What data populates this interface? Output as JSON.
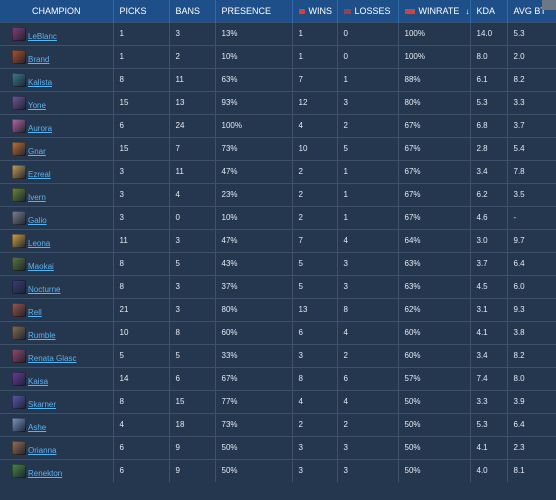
{
  "table": {
    "headers": {
      "champion": "CHAMPION",
      "picks": "PICKS",
      "bans": "BANS",
      "presence": "PRESENCE",
      "wins": "WINS",
      "losses": "LOSSES",
      "winrate": "WINRATE",
      "sort_glyph": "↓",
      "kda": "KDA",
      "avg_bt": "AVG BT"
    },
    "rows": [
      {
        "champion": "LeBlanc",
        "icon_color": "#8a3e7a",
        "picks": "1",
        "bans": "3",
        "presence": "13%",
        "wins": "1",
        "losses": "0",
        "winrate": "100%",
        "kda": "14.0",
        "avg_bt": "5.3"
      },
      {
        "champion": "Brand",
        "icon_color": "#b0542e",
        "picks": "1",
        "bans": "2",
        "presence": "10%",
        "wins": "1",
        "losses": "0",
        "winrate": "100%",
        "kda": "8.0",
        "avg_bt": "2.0"
      },
      {
        "champion": "Kalista",
        "icon_color": "#3e7d8c",
        "picks": "8",
        "bans": "11",
        "presence": "63%",
        "wins": "7",
        "losses": "1",
        "winrate": "88%",
        "kda": "6.1",
        "avg_bt": "8.2"
      },
      {
        "champion": "Yone",
        "icon_color": "#6e5a9a",
        "picks": "15",
        "bans": "13",
        "presence": "93%",
        "wins": "12",
        "losses": "3",
        "winrate": "80%",
        "kda": "5.3",
        "avg_bt": "3.3"
      },
      {
        "champion": "Aurora",
        "icon_color": "#b86aa6",
        "picks": "6",
        "bans": "24",
        "presence": "100%",
        "wins": "4",
        "losses": "2",
        "winrate": "67%",
        "kda": "6.8",
        "avg_bt": "3.7"
      },
      {
        "champion": "Gnar",
        "icon_color": "#c27436",
        "picks": "15",
        "bans": "7",
        "presence": "73%",
        "wins": "10",
        "losses": "5",
        "winrate": "67%",
        "kda": "2.8",
        "avg_bt": "5.4"
      },
      {
        "champion": "Ezreal",
        "icon_color": "#c9a25a",
        "picks": "3",
        "bans": "11",
        "presence": "47%",
        "wins": "2",
        "losses": "1",
        "winrate": "67%",
        "kda": "3.4",
        "avg_bt": "7.8"
      },
      {
        "champion": "Ivern",
        "icon_color": "#6a8a3a",
        "picks": "3",
        "bans": "4",
        "presence": "23%",
        "wins": "2",
        "losses": "1",
        "winrate": "67%",
        "kda": "6.2",
        "avg_bt": "3.5"
      },
      {
        "champion": "Galio",
        "icon_color": "#7c8590",
        "picks": "3",
        "bans": "0",
        "presence": "10%",
        "wins": "2",
        "losses": "1",
        "winrate": "67%",
        "kda": "4.6",
        "avg_bt": "-"
      },
      {
        "champion": "Leona",
        "icon_color": "#d4a646",
        "picks": "11",
        "bans": "3",
        "presence": "47%",
        "wins": "7",
        "losses": "4",
        "winrate": "64%",
        "kda": "3.0",
        "avg_bt": "9.7"
      },
      {
        "champion": "Maokai",
        "icon_color": "#5e7a3c",
        "picks": "8",
        "bans": "5",
        "presence": "43%",
        "wins": "5",
        "losses": "3",
        "winrate": "63%",
        "kda": "3.7",
        "avg_bt": "6.4"
      },
      {
        "champion": "Nocturne",
        "icon_color": "#3a3e78",
        "picks": "8",
        "bans": "3",
        "presence": "37%",
        "wins": "5",
        "losses": "3",
        "winrate": "63%",
        "kda": "4.5",
        "avg_bt": "6.0"
      },
      {
        "champion": "Rell",
        "icon_color": "#a0584a",
        "picks": "21",
        "bans": "3",
        "presence": "80%",
        "wins": "13",
        "losses": "8",
        "winrate": "62%",
        "kda": "3.1",
        "avg_bt": "9.3"
      },
      {
        "champion": "Rumble",
        "icon_color": "#8a6e52",
        "picks": "10",
        "bans": "8",
        "presence": "60%",
        "wins": "6",
        "losses": "4",
        "winrate": "60%",
        "kda": "4.1",
        "avg_bt": "3.8"
      },
      {
        "champion": "Renata Glasc",
        "icon_color": "#9a4a6a",
        "picks": "5",
        "bans": "5",
        "presence": "33%",
        "wins": "3",
        "losses": "2",
        "winrate": "60%",
        "kda": "3.4",
        "avg_bt": "8.2"
      },
      {
        "champion": "Kaisa",
        "icon_color": "#6a3e9a",
        "picks": "14",
        "bans": "6",
        "presence": "67%",
        "wins": "8",
        "losses": "6",
        "winrate": "57%",
        "kda": "7.4",
        "avg_bt": "8.0"
      },
      {
        "champion": "Skarner",
        "icon_color": "#5a5ab0",
        "picks": "8",
        "bans": "15",
        "presence": "77%",
        "wins": "4",
        "losses": "4",
        "winrate": "50%",
        "kda": "3.3",
        "avg_bt": "3.9"
      },
      {
        "champion": "Ashe",
        "icon_color": "#7a9ac6",
        "picks": "4",
        "bans": "18",
        "presence": "73%",
        "wins": "2",
        "losses": "2",
        "winrate": "50%",
        "kda": "5.3",
        "avg_bt": "6.4"
      },
      {
        "champion": "Orianna",
        "icon_color": "#a07050",
        "picks": "6",
        "bans": "9",
        "presence": "50%",
        "wins": "3",
        "losses": "3",
        "winrate": "50%",
        "kda": "4.1",
        "avg_bt": "2.3"
      },
      {
        "champion": "Renekton",
        "icon_color": "#4a8a4a",
        "picks": "6",
        "bans": "9",
        "presence": "50%",
        "wins": "3",
        "losses": "3",
        "winrate": "50%",
        "kda": "4.0",
        "avg_bt": "8.1"
      }
    ]
  },
  "colors": {
    "header_bg": "#1e4f89",
    "row_bg": "#25364f",
    "link": "#5ab4f0",
    "wins_marker": "#c64545",
    "losses_marker": "#8c4458"
  }
}
